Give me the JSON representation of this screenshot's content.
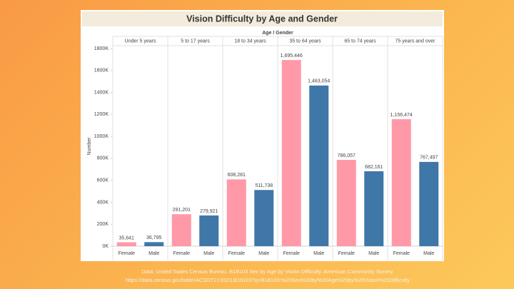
{
  "chart_data": {
    "type": "bar",
    "title": "Vision Difficulty by Age and Gender",
    "column_header": "Age / Gender",
    "ylabel": "Number",
    "categories": [
      "Under 5 years",
      "5 to 17 years",
      "18 to 34 years",
      "35 to 64 years",
      "65 to 74 years",
      "75 years and over"
    ],
    "series": [
      {
        "name": "Female",
        "color": "#ff99a8",
        "values": [
          35641,
          291201,
          608281,
          1695446,
          786057,
          1156474
        ],
        "value_labels": [
          "35,641",
          "291,201",
          "608,281",
          "1,695,446",
          "786,057",
          "1,156,474"
        ]
      },
      {
        "name": "Male",
        "color": "#3f77a8",
        "values": [
          36795,
          279921,
          511738,
          1463054,
          682161,
          767497
        ],
        "value_labels": [
          "36,795",
          "279,921",
          "511,738",
          "1,463,054",
          "682,161",
          "767,497"
        ]
      }
    ],
    "ylim": [
      0,
      1800000
    ],
    "yticks": [
      {
        "value": 0,
        "label": "0K"
      },
      {
        "value": 200000,
        "label": "200K"
      },
      {
        "value": 400000,
        "label": "400K"
      },
      {
        "value": 600000,
        "label": "600K"
      },
      {
        "value": 800000,
        "label": "800K"
      },
      {
        "value": 1000000,
        "label": "1000K"
      },
      {
        "value": 1200000,
        "label": "1200K"
      },
      {
        "value": 1400000,
        "label": "1400K"
      },
      {
        "value": 1600000,
        "label": "1600K"
      },
      {
        "value": 1800000,
        "label": "1800K"
      }
    ],
    "source": [
      "Data: United States Census Bureau. B18103 Sex by Age by Vision Difficulty. American Community Survey.",
      "https://data.census.gov/table/ACSDT1Y2023.B18103?q=B18103:%20Sex%20by%20Age%20by%20Vision%20Difficulty"
    ]
  }
}
